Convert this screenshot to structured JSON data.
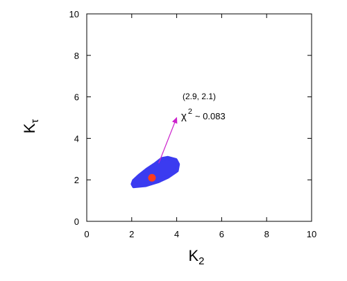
{
  "chart_data": {
    "type": "scatter",
    "title": "",
    "xlabel": "K",
    "xlabel_sub": "2",
    "ylabel": "K",
    "ylabel_sub": "τ",
    "xlim": [
      0,
      10
    ],
    "ylim": [
      0,
      10
    ],
    "x_ticks": [
      0,
      2,
      4,
      6,
      8,
      10
    ],
    "y_ticks": [
      0,
      2,
      4,
      6,
      8,
      10
    ],
    "grid": false,
    "legend": "none",
    "region": {
      "color": "#3b3bf0",
      "outline": [
        [
          2.1,
          1.7
        ],
        [
          2.6,
          1.75
        ],
        [
          3.2,
          1.95
        ],
        [
          3.6,
          2.15
        ],
        [
          4.0,
          2.45
        ],
        [
          4.05,
          2.75
        ],
        [
          3.95,
          2.95
        ],
        [
          3.6,
          3.05
        ],
        [
          3.35,
          3.0
        ],
        [
          3.05,
          2.75
        ],
        [
          2.7,
          2.5
        ],
        [
          2.35,
          2.2
        ],
        [
          2.1,
          1.95
        ],
        [
          2.05,
          1.8
        ]
      ]
    },
    "best_fit": {
      "x": 2.9,
      "y": 2.1,
      "color": "#ff3b1f"
    },
    "annotation": {
      "arrow_from": [
        3.2,
        2.8
      ],
      "arrow_to": [
        4.0,
        5.0
      ],
      "arrow_color": "#cc22cc",
      "point_label": "(2.9, 2.1)",
      "chi_symbol": "χ",
      "chi_exponent": "2",
      "chi_value": "~ 0.083"
    },
    "colors": {
      "axis": "#000000",
      "region": "#3b3bf0",
      "best_fit": "#ff3b1f",
      "arrow": "#cc22cc"
    }
  }
}
